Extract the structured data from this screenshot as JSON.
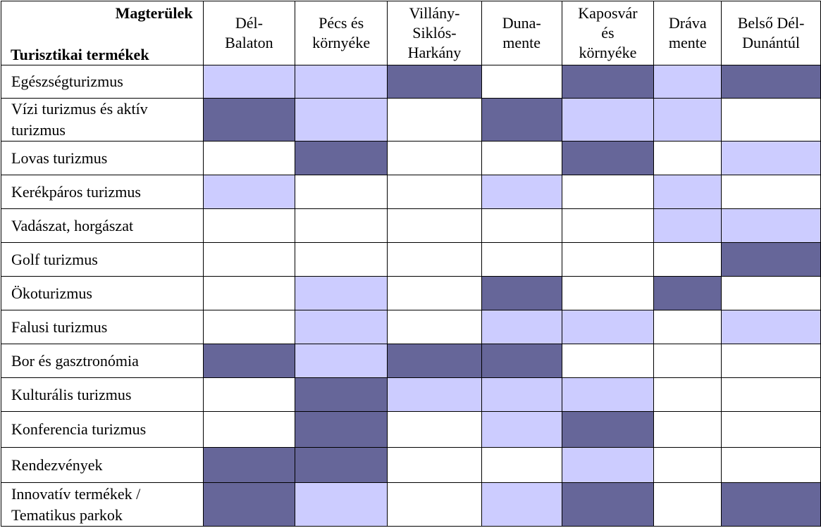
{
  "header": {
    "corner_top": "Magterülek",
    "corner_bottom": "Turisztikai termékek",
    "columns": [
      "Dél-\nBalaton",
      "Pécs és\nkörnyéke",
      "Villány-\nSiklós-\nHarkány",
      "Duna-\nmente",
      "Kaposvár\nés\nkörnyéke",
      "Dráva\nmente",
      "Belső Dél-\nDunántúl"
    ]
  },
  "legend_colors": {
    "none": "#ffffff",
    "secondary": "#ccccff",
    "primary": "#666699"
  },
  "rows": [
    {
      "label": "Egészségturizmus",
      "levels": [
        1,
        1,
        2,
        0,
        2,
        1,
        2
      ]
    },
    {
      "label": "Vízi turizmus és aktív\nturizmus",
      "levels": [
        2,
        1,
        0,
        2,
        1,
        1,
        0
      ]
    },
    {
      "label": "Lovas turizmus",
      "levels": [
        0,
        2,
        0,
        0,
        2,
        0,
        1
      ]
    },
    {
      "label": "Kerékpáros turizmus",
      "levels": [
        1,
        0,
        0,
        1,
        0,
        1,
        0
      ]
    },
    {
      "label": "Vadászat, horgászat",
      "levels": [
        0,
        0,
        0,
        0,
        0,
        1,
        1
      ]
    },
    {
      "label": "Golf turizmus",
      "levels": [
        0,
        0,
        0,
        0,
        0,
        0,
        2
      ]
    },
    {
      "label": "Ökoturizmus",
      "levels": [
        0,
        1,
        0,
        2,
        0,
        2,
        0
      ]
    },
    {
      "label": "Falusi turizmus",
      "levels": [
        0,
        1,
        0,
        1,
        1,
        0,
        1
      ]
    },
    {
      "label": "Bor és gasztronómia",
      "levels": [
        2,
        1,
        2,
        2,
        0,
        0,
        0
      ]
    },
    {
      "label": "Kulturális turizmus",
      "levels": [
        0,
        2,
        1,
        1,
        1,
        0,
        0
      ]
    },
    {
      "label": "Konferencia turizmus",
      "levels": [
        0,
        2,
        0,
        1,
        2,
        0,
        0
      ]
    },
    {
      "label": "Rendezvények",
      "levels": [
        2,
        2,
        0,
        0,
        1,
        0,
        0
      ]
    },
    {
      "label": "Innovatív termékek /\nTematikus parkok",
      "levels": [
        2,
        1,
        0,
        1,
        2,
        0,
        2
      ]
    }
  ]
}
